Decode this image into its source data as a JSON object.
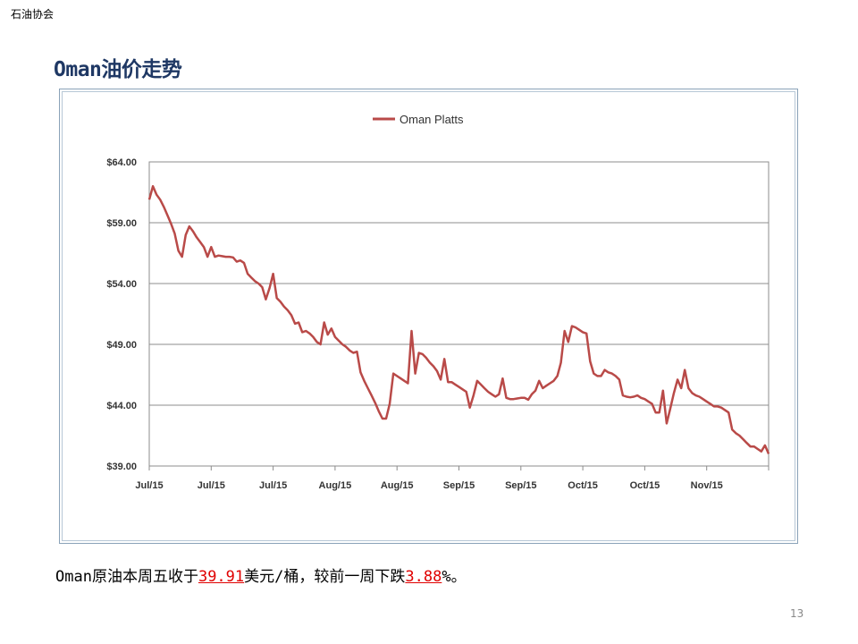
{
  "header": {
    "org": "石油协会"
  },
  "slide": {
    "title": "Oman油价走势",
    "page_number": "13"
  },
  "summary": {
    "prefix": "Oman原油本周五收于",
    "price": "39.91",
    "mid": "美元/桶，较前一周下跌",
    "change": "3.88",
    "suffix": "%。"
  },
  "colors": {
    "series": "#b94a48",
    "grid": "#8c8c8c",
    "title": "#1f3864",
    "highlight": "#e00000"
  },
  "chart_data": {
    "type": "line",
    "legend": "top-center",
    "grid": true,
    "ylim": [
      39,
      64
    ],
    "y_ticks": [
      "$64.00",
      "$59.00",
      "$54.00",
      "$49.00",
      "$44.00",
      "$39.00"
    ],
    "y_tick_values": [
      64,
      59,
      54,
      49,
      44,
      39
    ],
    "x_ticks": [
      "Jul/15",
      "Jul/15",
      "Jul/15",
      "Aug/15",
      "Aug/15",
      "Sep/15",
      "Sep/15",
      "Oct/15",
      "Oct/15",
      "Nov/15"
    ],
    "series": [
      {
        "name": "Oman Platts",
        "values": [
          60.9,
          62.0,
          61.3,
          60.9,
          60.3,
          59.6,
          58.9,
          58.1,
          56.7,
          56.2,
          58.0,
          58.7,
          58.3,
          57.8,
          57.4,
          57.0,
          56.2,
          57.0,
          56.2,
          56.3,
          56.25,
          56.2,
          56.2,
          56.15,
          55.8,
          55.9,
          55.7,
          54.8,
          54.5,
          54.2,
          54.0,
          53.7,
          52.7,
          53.6,
          54.8,
          52.8,
          52.5,
          52.1,
          51.8,
          51.4,
          50.7,
          50.8,
          50.0,
          50.1,
          49.9,
          49.6,
          49.2,
          49.0,
          50.8,
          49.8,
          50.3,
          49.6,
          49.3,
          49.0,
          48.8,
          48.5,
          48.3,
          48.4,
          46.7,
          46.0,
          45.4,
          44.8,
          44.2,
          43.5,
          42.9,
          42.9,
          44.1,
          46.6,
          46.4,
          46.2,
          46.0,
          45.8,
          50.1,
          46.6,
          48.3,
          48.2,
          47.9,
          47.5,
          47.2,
          46.8,
          46.1,
          47.8,
          45.9,
          45.9,
          45.7,
          45.5,
          45.3,
          45.1,
          43.8,
          44.8,
          46.0,
          45.7,
          45.4,
          45.1,
          44.9,
          44.7,
          44.9,
          46.2,
          44.6,
          44.5,
          44.5,
          44.55,
          44.6,
          44.6,
          44.45,
          44.9,
          45.2,
          46.0,
          45.4,
          45.6,
          45.8,
          46.0,
          46.4,
          47.5,
          50.1,
          49.2,
          50.5,
          50.4,
          50.2,
          50.0,
          49.9,
          47.6,
          46.6,
          46.4,
          46.4,
          46.9,
          46.7,
          46.6,
          46.4,
          46.1,
          44.8,
          44.7,
          44.65,
          44.7,
          44.8,
          44.6,
          44.5,
          44.3,
          44.1,
          43.4,
          43.4,
          45.2,
          42.5,
          43.7,
          45.0,
          46.1,
          45.4,
          46.9,
          45.4,
          45.0,
          44.8,
          44.7,
          44.5,
          44.3,
          44.1,
          43.9,
          43.9,
          43.8,
          43.6,
          43.4,
          42.0,
          41.7,
          41.5,
          41.2,
          40.9,
          40.6,
          40.6,
          40.4,
          40.2,
          40.7,
          40.0
        ]
      }
    ]
  }
}
